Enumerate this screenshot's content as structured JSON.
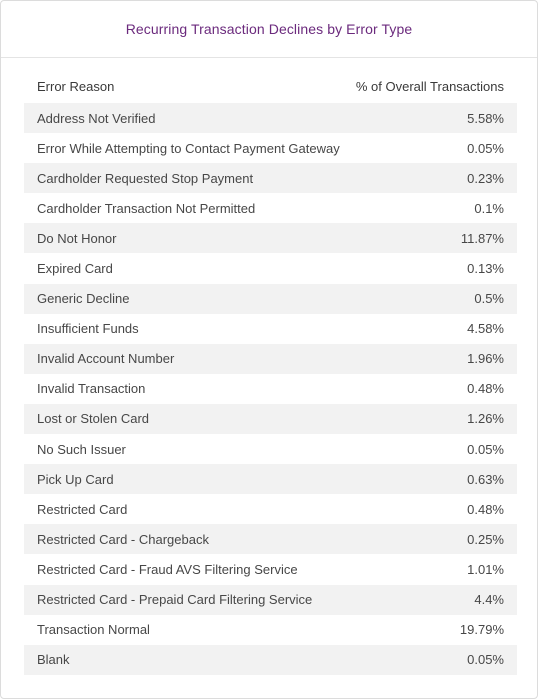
{
  "card": {
    "title": "Recurring Transaction Declines by Error Type"
  },
  "table": {
    "headers": [
      "Error Reason",
      "% of Overall Transactions"
    ]
  },
  "chart_data": {
    "type": "table",
    "title": "Recurring Transaction Declines by Error Type",
    "columns": [
      "Error Reason",
      "% of Overall Transactions"
    ],
    "rows": [
      [
        "Address Not Verified",
        "5.58%"
      ],
      [
        "Error While Attempting to Contact Payment Gateway",
        "0.05%"
      ],
      [
        "Cardholder Requested Stop Payment",
        "0.23%"
      ],
      [
        "Cardholder Transaction Not Permitted",
        "0.1%"
      ],
      [
        "Do Not Honor",
        "11.87%"
      ],
      [
        "Expired Card",
        "0.13%"
      ],
      [
        "Generic Decline",
        "0.5%"
      ],
      [
        "Insufficient Funds",
        "4.58%"
      ],
      [
        "Invalid Account Number",
        "1.96%"
      ],
      [
        "Invalid Transaction",
        "0.48%"
      ],
      [
        "Lost or Stolen Card",
        "1.26%"
      ],
      [
        "No Such Issuer",
        "0.05%"
      ],
      [
        "Pick Up Card",
        "0.63%"
      ],
      [
        "Restricted Card",
        "0.48%"
      ],
      [
        "Restricted Card - Chargeback",
        "0.25%"
      ],
      [
        "Restricted Card - Fraud AVS Filtering Service",
        "1.01%"
      ],
      [
        "Restricted Card - Prepaid Card Filtering Service",
        "4.4%"
      ],
      [
        "Transaction Normal",
        "19.79%"
      ],
      [
        "Blank",
        "0.05%"
      ]
    ]
  }
}
